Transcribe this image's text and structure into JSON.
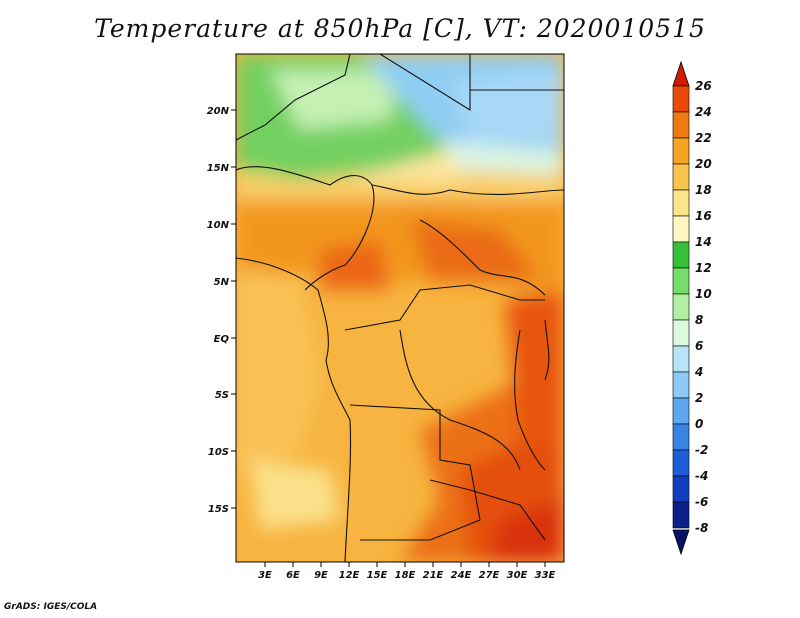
{
  "title": "Temperature at 850hPa [C], VT: 2020010515",
  "credit": "GrADS: IGES/COLA",
  "map": {
    "lat_labels": [
      "20N",
      "15N",
      "10N",
      "5N",
      "EQ",
      "5S",
      "10S",
      "15S"
    ],
    "lon_labels": [
      "3E",
      "6E",
      "9E",
      "12E",
      "15E",
      "18E",
      "21E",
      "24E",
      "27E",
      "30E",
      "33E"
    ]
  },
  "colorbar": {
    "labels": [
      "26",
      "24",
      "22",
      "20",
      "18",
      "16",
      "14",
      "12",
      "10",
      "8",
      "6",
      "4",
      "2",
      "0",
      "-2",
      "-4",
      "-6",
      "-8"
    ],
    "colors": [
      "#d11a00",
      "#e84a08",
      "#ef7a12",
      "#f6a522",
      "#f8c64e",
      "#fbe489",
      "#fef6c0",
      "#38bf3a",
      "#78dc6b",
      "#b0f0a2",
      "#dcf8de",
      "#b8e4f8",
      "#8ccaf5",
      "#5fa8ef",
      "#3a83e5",
      "#1f5ed8",
      "#103ebd",
      "#0b1f8a",
      "#061268"
    ]
  }
}
